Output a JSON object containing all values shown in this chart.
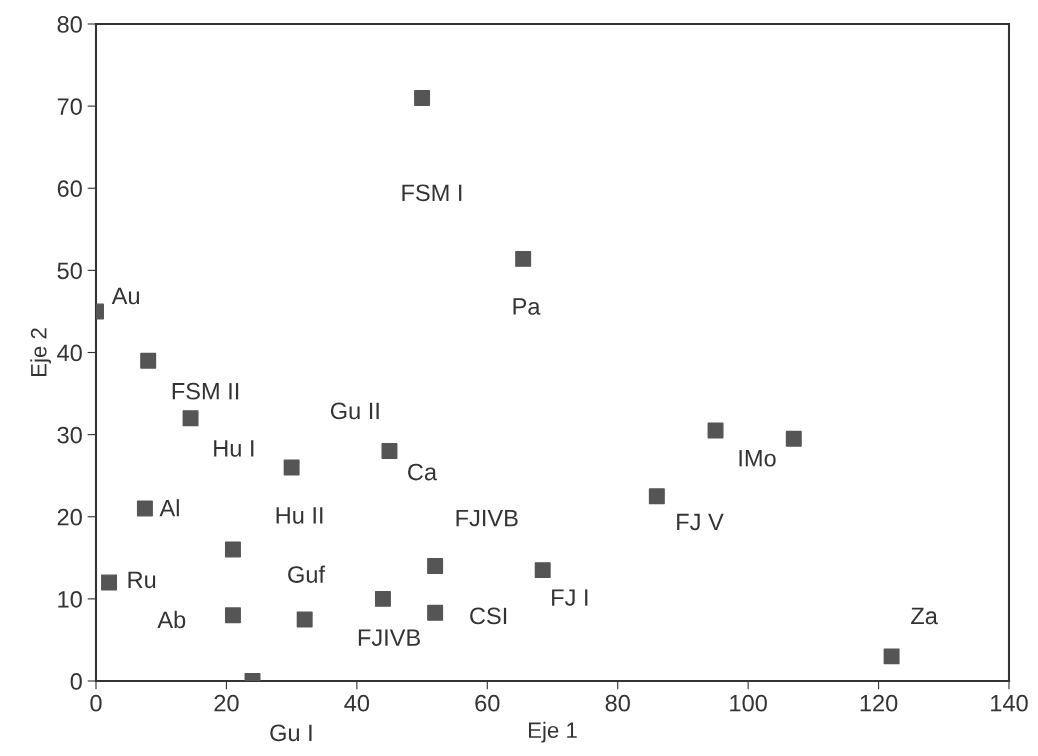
{
  "chart_data": {
    "type": "scatter",
    "xlabel": "Eje 1",
    "ylabel": "Eje 2",
    "marker": "square",
    "grid": false,
    "legend": false,
    "series": [
      {
        "color": "#555555",
        "x": [
          50,
          65.5,
          0,
          8,
          14.5,
          30,
          45,
          95,
          107,
          86,
          7.5,
          21,
          52,
          68.5,
          2,
          44,
          21,
          32,
          52,
          122,
          24
        ],
        "values": [
          71,
          51.4,
          45,
          39,
          32,
          26,
          28,
          30.5,
          29.5,
          22.5,
          21,
          16,
          14,
          13.5,
          12,
          10,
          8,
          7.5,
          8.3,
          3,
          0
        ]
      }
    ],
    "xlim": [
      0,
      140
    ],
    "xticks": [
      0,
      20,
      40,
      60,
      80,
      100,
      120,
      140
    ],
    "ylim": [
      0,
      80
    ],
    "yticks": [
      0,
      10,
      20,
      30,
      40,
      50,
      60,
      70,
      80
    ],
    "annotations": [
      "FSM I",
      "Pa",
      "Au",
      "FSM II",
      "Gu II",
      "Hu I",
      "Ca",
      "IMo",
      "FJ V",
      "FJIVB",
      "Al",
      "Hu II",
      "Guf",
      "Ru",
      "FJ I",
      "Ab",
      "CSI",
      "FJIVB",
      "Za",
      "Gu I"
    ]
  }
}
